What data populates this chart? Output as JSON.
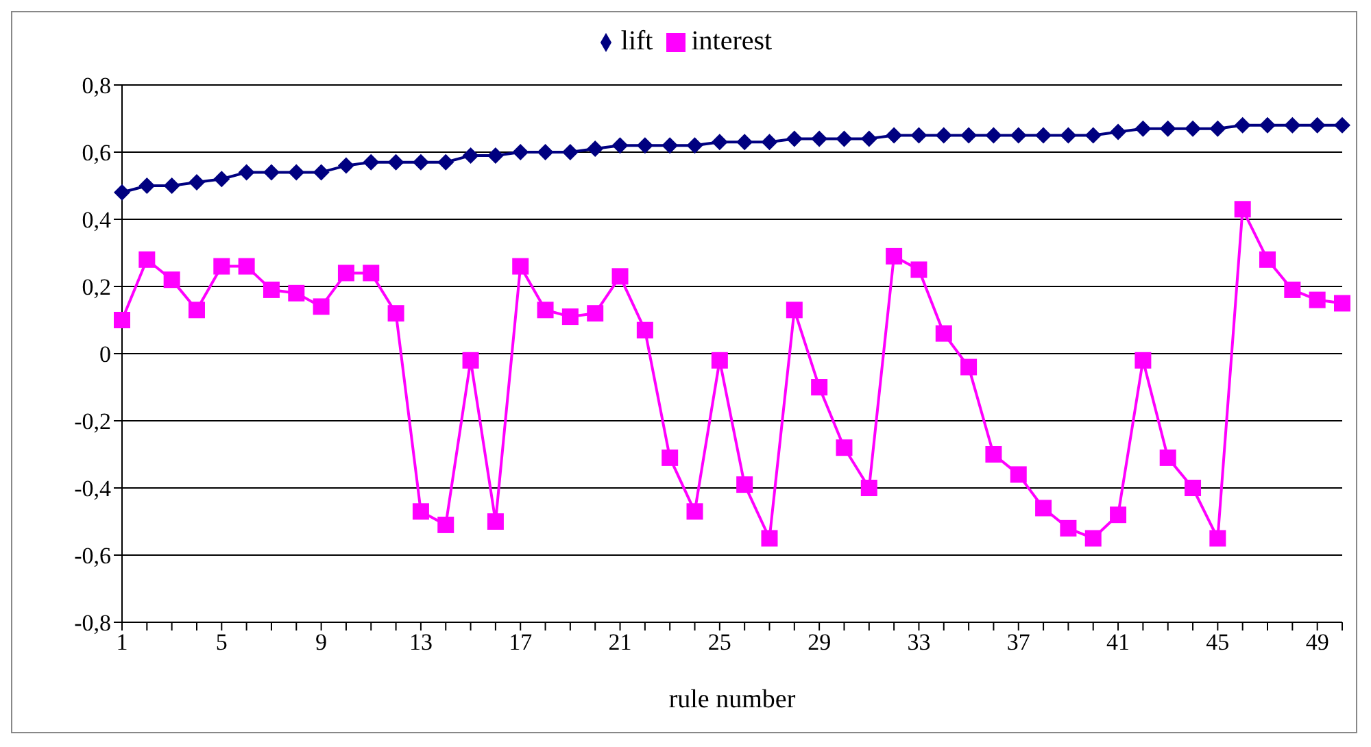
{
  "chart_data": {
    "type": "line",
    "xlabel": "rule number",
    "categories": [
      "1",
      null,
      null,
      null,
      "5",
      null,
      null,
      null,
      "9",
      null,
      null,
      null,
      "13",
      null,
      null,
      null,
      "17",
      null,
      null,
      null,
      "21",
      null,
      null,
      null,
      "25",
      null,
      null,
      null,
      "29",
      null,
      null,
      null,
      "33",
      null,
      null,
      null,
      "37",
      null,
      null,
      null,
      "41",
      null,
      null,
      null,
      "45",
      null,
      null,
      null,
      "49",
      null
    ],
    "series": [
      {
        "name": "lift",
        "color": "#000080",
        "marker": "diamond",
        "values": [
          0.48,
          0.5,
          0.5,
          0.51,
          0.52,
          0.54,
          0.54,
          0.54,
          0.54,
          0.56,
          0.57,
          0.57,
          0.57,
          0.57,
          0.59,
          0.59,
          0.6,
          0.6,
          0.6,
          0.61,
          0.62,
          0.62,
          0.62,
          0.62,
          0.63,
          0.63,
          0.63,
          0.64,
          0.64,
          0.64,
          0.64,
          0.65,
          0.65,
          0.65,
          0.65,
          0.65,
          0.65,
          0.65,
          0.65,
          0.65,
          0.66,
          0.67,
          0.67,
          0.67,
          0.67,
          0.68,
          0.68,
          0.68,
          0.68,
          0.68
        ]
      },
      {
        "name": "interest",
        "color": "#ff00ff",
        "marker": "square",
        "values": [
          0.1,
          0.28,
          0.22,
          0.13,
          0.26,
          0.26,
          0.19,
          0.18,
          0.14,
          0.24,
          0.24,
          0.12,
          -0.47,
          -0.51,
          -0.02,
          -0.5,
          0.26,
          0.13,
          0.11,
          0.12,
          0.23,
          0.07,
          -0.31,
          -0.47,
          -0.02,
          -0.39,
          -0.55,
          0.13,
          -0.1,
          -0.28,
          -0.4,
          0.29,
          0.25,
          0.06,
          -0.04,
          -0.3,
          -0.36,
          -0.46,
          -0.52,
          -0.55,
          -0.48,
          -0.02,
          -0.31,
          -0.4,
          -0.55,
          0.43,
          0.28,
          0.19,
          0.16,
          0.15
        ]
      }
    ],
    "ylim": [
      -0.8,
      0.8
    ],
    "yticks": [
      {
        "value": -0.8,
        "label": "-0,8"
      },
      {
        "value": -0.6,
        "label": "-0,6"
      },
      {
        "value": -0.4,
        "label": "-0,4"
      },
      {
        "value": -0.2,
        "label": "-0,2"
      },
      0,
      {
        "value": 0.2,
        "label": "0,2"
      },
      {
        "value": 0.4,
        "label": "0,4"
      },
      {
        "value": 0.6,
        "label": "0,6"
      },
      {
        "value": 0.8,
        "label": "0,8"
      }
    ],
    "grid": "y",
    "legend": "top",
    "line_style": "solid"
  }
}
